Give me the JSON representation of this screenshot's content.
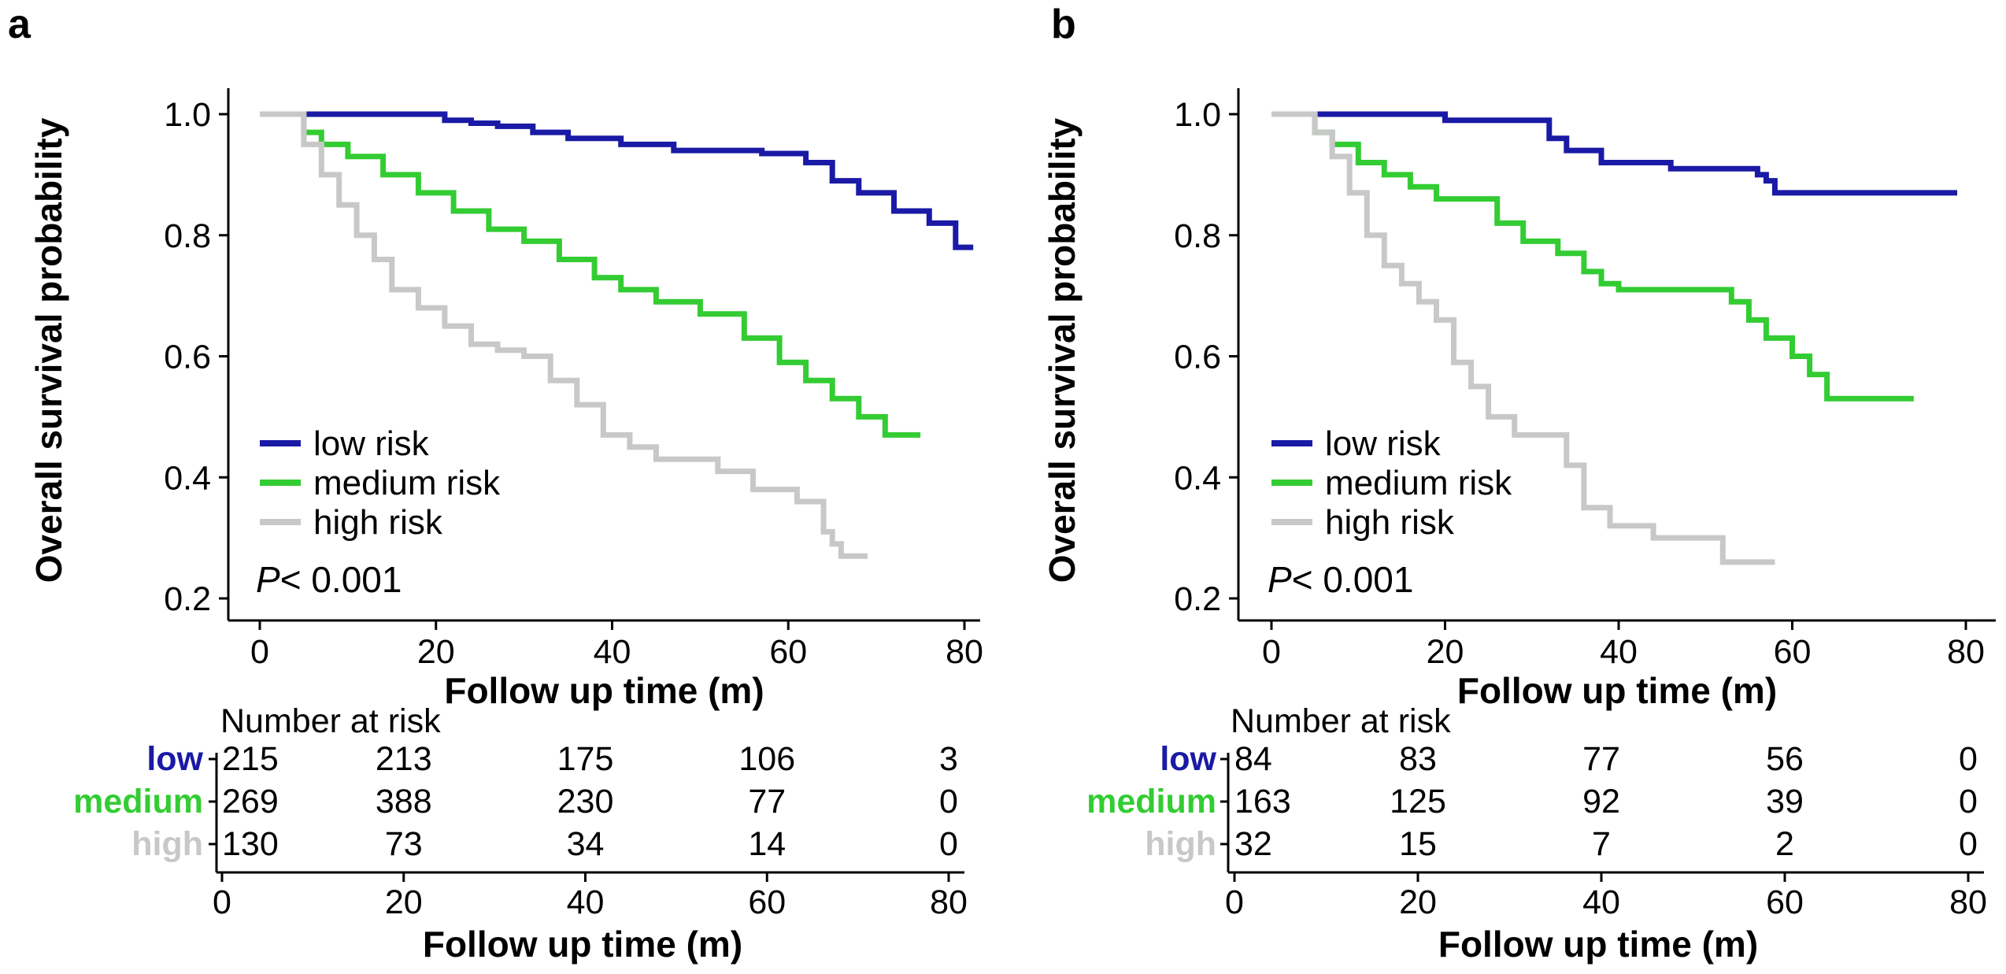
{
  "colors": {
    "low": "#1a1aa6",
    "medium": "#33cc33",
    "high": "#c8c8c8",
    "axis": "#000000"
  },
  "chart_data": [
    {
      "panel": "a",
      "type": "line",
      "subtype": "kaplan-meier",
      "xlabel": "Follow up time (m)",
      "ylabel": "Overall survival probability",
      "xlim": [
        0,
        80
      ],
      "ylim": [
        0.2,
        1.0
      ],
      "xticks": [
        "0",
        "20",
        "40",
        "60",
        "80"
      ],
      "yticks": [
        "0.2",
        "0.4",
        "0.6",
        "0.8",
        "1.0"
      ],
      "legend": [
        "low risk",
        "medium risk",
        "high risk"
      ],
      "legend_position": "bottom-left",
      "pvalue_italic": "P",
      "pvalue_rest": "< 0.001",
      "series": [
        {
          "name": "low risk",
          "color_key": "low",
          "x": [
            0,
            3,
            10,
            19,
            21,
            24,
            27,
            31,
            35,
            41,
            47,
            57,
            62,
            65,
            68,
            72,
            76,
            79,
            81
          ],
          "y": [
            1.0,
            1.0,
            1.0,
            1.0,
            0.99,
            0.985,
            0.98,
            0.97,
            0.96,
            0.95,
            0.94,
            0.935,
            0.92,
            0.89,
            0.87,
            0.84,
            0.82,
            0.78,
            0.78
          ]
        },
        {
          "name": "medium risk",
          "color_key": "medium",
          "x": [
            0,
            3,
            5,
            7,
            10,
            14,
            18,
            22,
            26,
            30,
            34,
            38,
            41,
            45,
            50,
            55,
            59,
            62,
            65,
            68,
            71,
            75
          ],
          "y": [
            1.0,
            1.0,
            0.97,
            0.95,
            0.93,
            0.9,
            0.87,
            0.84,
            0.81,
            0.79,
            0.76,
            0.73,
            0.71,
            0.69,
            0.67,
            0.63,
            0.59,
            0.56,
            0.53,
            0.5,
            0.47,
            0.47
          ]
        },
        {
          "name": "high risk",
          "color_key": "high",
          "x": [
            0,
            3,
            5,
            7,
            9,
            11,
            13,
            15,
            18,
            21,
            24,
            27,
            30,
            33,
            36,
            39,
            42,
            45,
            52,
            56,
            61,
            64,
            65,
            66,
            69
          ],
          "y": [
            1.0,
            1.0,
            0.95,
            0.9,
            0.85,
            0.8,
            0.76,
            0.71,
            0.68,
            0.65,
            0.62,
            0.61,
            0.6,
            0.56,
            0.52,
            0.47,
            0.45,
            0.43,
            0.41,
            0.38,
            0.36,
            0.31,
            0.29,
            0.27,
            0.27
          ]
        }
      ],
      "risk_table": {
        "title": "Number at risk",
        "xlabel": "Follow up time (m)",
        "xticks": [
          "0",
          "20",
          "40",
          "60",
          "80"
        ],
        "rows": [
          {
            "label": "low",
            "color_key": "low",
            "values": [
              "215",
              "213",
              "175",
              "106",
              "3"
            ]
          },
          {
            "label": "medium",
            "color_key": "medium",
            "values": [
              "269",
              "388",
              "230",
              "77",
              "0"
            ]
          },
          {
            "label": "high",
            "color_key": "high",
            "values": [
              "130",
              "73",
              "34",
              "14",
              "0"
            ]
          }
        ]
      }
    },
    {
      "panel": "b",
      "type": "line",
      "subtype": "kaplan-meier",
      "xlabel": "Follow up time (m)",
      "ylabel": "Overall survival probability",
      "xlim": [
        0,
        80
      ],
      "ylim": [
        0.2,
        1.0
      ],
      "xticks": [
        "0",
        "20",
        "40",
        "60",
        "80"
      ],
      "yticks": [
        "0.2",
        "0.4",
        "0.6",
        "0.8",
        "1.0"
      ],
      "legend": [
        "low risk",
        "medium risk",
        "high risk"
      ],
      "legend_position": "bottom-left",
      "pvalue_italic": "P",
      "pvalue_rest": "< 0.001",
      "series": [
        {
          "name": "low risk",
          "color_key": "low",
          "x": [
            0,
            3,
            19,
            20,
            30,
            32,
            34,
            36,
            38,
            42,
            46,
            54,
            56,
            57,
            58,
            63,
            79
          ],
          "y": [
            1.0,
            1.0,
            1.0,
            0.99,
            0.99,
            0.96,
            0.94,
            0.94,
            0.92,
            0.92,
            0.91,
            0.91,
            0.9,
            0.89,
            0.87,
            0.87,
            0.87
          ]
        },
        {
          "name": "medium risk",
          "color_key": "medium",
          "x": [
            0,
            3,
            5,
            7,
            10,
            13,
            16,
            19,
            23,
            26,
            29,
            33,
            36,
            38,
            40,
            50,
            53,
            55,
            57,
            60,
            62,
            64,
            74
          ],
          "y": [
            1.0,
            1.0,
            0.97,
            0.95,
            0.92,
            0.9,
            0.88,
            0.86,
            0.86,
            0.82,
            0.79,
            0.77,
            0.74,
            0.72,
            0.71,
            0.71,
            0.69,
            0.66,
            0.63,
            0.6,
            0.57,
            0.53,
            0.53
          ]
        },
        {
          "name": "high risk",
          "color_key": "high",
          "x": [
            0,
            3,
            5,
            7,
            9,
            11,
            13,
            15,
            17,
            19,
            21,
            23,
            25,
            28,
            32,
            34,
            36,
            39,
            44,
            50,
            52,
            58
          ],
          "y": [
            1.0,
            1.0,
            0.97,
            0.93,
            0.87,
            0.8,
            0.75,
            0.72,
            0.69,
            0.66,
            0.59,
            0.55,
            0.5,
            0.47,
            0.47,
            0.42,
            0.35,
            0.32,
            0.3,
            0.3,
            0.26,
            0.26
          ]
        }
      ],
      "risk_table": {
        "title": "Number at risk",
        "xlabel": "Follow up time (m)",
        "xticks": [
          "0",
          "20",
          "40",
          "60",
          "80"
        ],
        "rows": [
          {
            "label": "low",
            "color_key": "low",
            "values": [
              "84",
              "83",
              "77",
              "56",
              "0"
            ]
          },
          {
            "label": "medium",
            "color_key": "medium",
            "values": [
              "163",
              "125",
              "92",
              "39",
              "0"
            ]
          },
          {
            "label": "high",
            "color_key": "high",
            "values": [
              "32",
              "15",
              "7",
              "2",
              "0"
            ]
          }
        ]
      }
    }
  ]
}
